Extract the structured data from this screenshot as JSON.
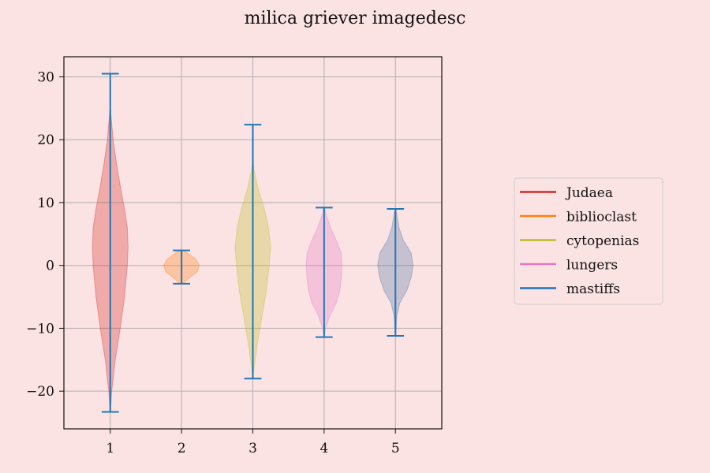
{
  "chart_data": {
    "type": "violin",
    "title": "milica griever imagedesc",
    "xlabel": "",
    "ylabel": "",
    "x_ticks": [
      "1",
      "2",
      "3",
      "4",
      "5"
    ],
    "y_ticks": [
      "30",
      "20",
      "10",
      "0",
      "−10",
      "−20"
    ],
    "y_tick_values": [
      30,
      20,
      10,
      0,
      -10,
      -20
    ],
    "xlim": [
      0.35,
      5.65
    ],
    "ylim": [
      -26,
      33.2
    ],
    "grid": true,
    "legend_position": "right",
    "series": [
      {
        "name": "Judaea",
        "position": 1,
        "min": -23.3,
        "max": 30.5,
        "color": "#d62728",
        "density": [
          [
            -23.3,
            0.003
          ],
          [
            -20,
            0.02
          ],
          [
            -15,
            0.07
          ],
          [
            -10,
            0.14
          ],
          [
            -5,
            0.2
          ],
          [
            0,
            0.24
          ],
          [
            3,
            0.25
          ],
          [
            6,
            0.24
          ],
          [
            9,
            0.2
          ],
          [
            12,
            0.15
          ],
          [
            16,
            0.09
          ],
          [
            20,
            0.04
          ],
          [
            24,
            0.01
          ],
          [
            25,
            0.002
          ]
        ]
      },
      {
        "name": "biblioclast",
        "position": 2,
        "min": -2.9,
        "max": 2.4,
        "color": "#ff7f0e",
        "density": [
          [
            -2.9,
            0.02
          ],
          [
            -2,
            0.11
          ],
          [
            -1,
            0.22
          ],
          [
            0,
            0.25
          ],
          [
            1,
            0.2
          ],
          [
            2,
            0.08
          ],
          [
            2.4,
            0.02
          ]
        ]
      },
      {
        "name": "cytopenias",
        "position": 3,
        "min": -18,
        "max": 22.4,
        "color": "#bcbd22",
        "density": [
          [
            -18,
            0.003
          ],
          [
            -16,
            0.02
          ],
          [
            -12,
            0.07
          ],
          [
            -8,
            0.13
          ],
          [
            -4,
            0.19
          ],
          [
            0,
            0.23
          ],
          [
            3,
            0.25
          ],
          [
            6,
            0.22
          ],
          [
            9,
            0.16
          ],
          [
            12,
            0.08
          ],
          [
            15,
            0.02
          ],
          [
            16.5,
            0.004
          ]
        ]
      },
      {
        "name": "lungers",
        "position": 4,
        "min": -11.4,
        "max": 9.2,
        "color": "#e377c2",
        "density": [
          [
            -11.4,
            0.003
          ],
          [
            -10,
            0.02
          ],
          [
            -8,
            0.08
          ],
          [
            -6,
            0.17
          ],
          [
            -4,
            0.22
          ],
          [
            -2,
            0.24
          ],
          [
            0,
            0.25
          ],
          [
            2,
            0.24
          ],
          [
            4,
            0.17
          ],
          [
            6,
            0.09
          ],
          [
            8,
            0.03
          ],
          [
            9.2,
            0.005
          ]
        ]
      },
      {
        "name": "mastiffs",
        "position": 5,
        "min": -11.2,
        "max": 9.0,
        "color": "#4a74aa",
        "density": [
          [
            -11.2,
            0.003
          ],
          [
            -10,
            0.01
          ],
          [
            -8,
            0.02
          ],
          [
            -6,
            0.06
          ],
          [
            -4,
            0.16
          ],
          [
            -2,
            0.22
          ],
          [
            0,
            0.25
          ],
          [
            2,
            0.22
          ],
          [
            4,
            0.11
          ],
          [
            6,
            0.05
          ],
          [
            8,
            0.02
          ],
          [
            9,
            0.005
          ]
        ]
      }
    ]
  },
  "legend": {
    "items": [
      {
        "label": "Judaea",
        "color": "#d62728"
      },
      {
        "label": "biblioclast",
        "color": "#ff7f0e"
      },
      {
        "label": "cytopenias",
        "color": "#bcbd22"
      },
      {
        "label": "lungers",
        "color": "#e377c2"
      },
      {
        "label": "mastiffs",
        "color": "#1f77b4"
      }
    ]
  },
  "colors": {
    "background": "#fbe2e3",
    "grid": "#b0b0b0",
    "whisker": "#1f77b4"
  }
}
